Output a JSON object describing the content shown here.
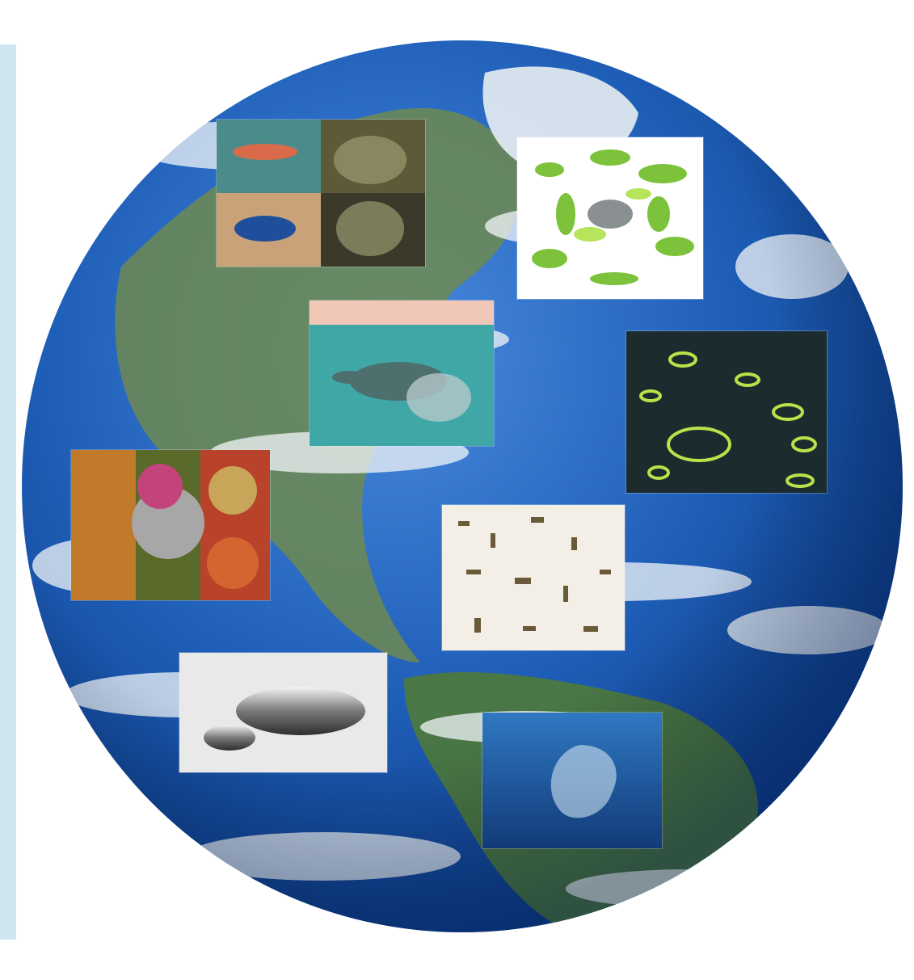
{
  "image": {
    "subject": "earth-globe",
    "tiles": [
      {
        "name": "aquatic-life-collage",
        "icon": "fish-collage-icon"
      },
      {
        "name": "fish-illustration",
        "icon": "fish-illustration-icon"
      },
      {
        "name": "sea-turtle-photo",
        "icon": "sea-turtle-icon"
      },
      {
        "name": "bacteria-micrograph",
        "icon": "bacteria-icon"
      },
      {
        "name": "microbe-colony-micrograph",
        "icon": "microbe-icon"
      },
      {
        "name": "microplastic-fragments",
        "icon": "microplastic-icon"
      },
      {
        "name": "mercury-droplets",
        "icon": "mercury-droplet-icon"
      },
      {
        "name": "plastic-bag-underwater",
        "icon": "plastic-bag-icon"
      }
    ],
    "colors": {
      "ocean": "#1f5fb8",
      "ocean_deep": "#0d3f8f",
      "land": "#5f7f45",
      "cloud": "#f2f5f8",
      "left_strip": "#cfe6f0"
    }
  }
}
